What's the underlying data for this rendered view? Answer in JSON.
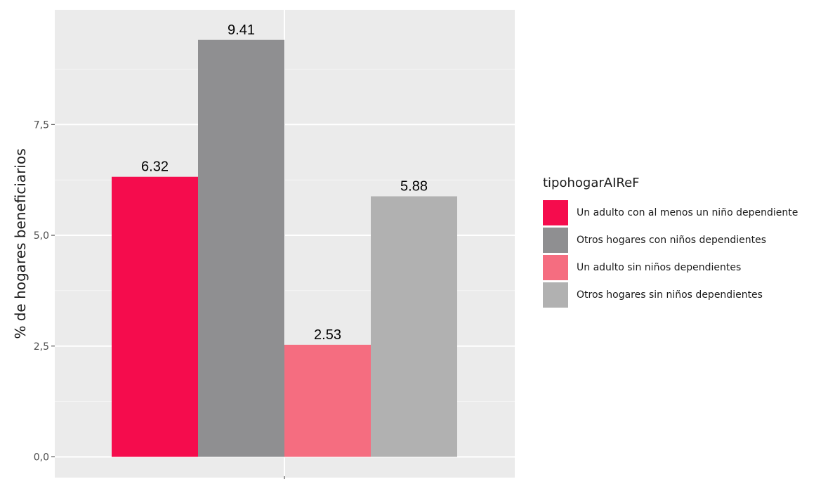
{
  "chart_data": {
    "type": "bar",
    "categories": [
      ""
    ],
    "series": [
      {
        "name": "Un adulto con al menos un niño dependiente",
        "values": [
          6.32
        ],
        "color": "#f50c4d",
        "label": "6.32"
      },
      {
        "name": "Otros hogares con niños dependientes",
        "values": [
          9.41
        ],
        "color": "#8f8f91",
        "label": "9.41"
      },
      {
        "name": "Un adulto sin niños dependientes",
        "values": [
          2.53
        ],
        "color": "#f56d80",
        "label": "2.53"
      },
      {
        "name": "Otros hogares sin niños dependientes",
        "values": [
          5.88
        ],
        "color": "#b1b1b1",
        "label": "5.88"
      }
    ],
    "xlabel": "",
    "ylabel": "% de hogares beneficiarios",
    "ylim": [
      0,
      9.85
    ],
    "yticks": [
      0,
      2.5,
      5,
      7.5
    ],
    "ytick_labels": [
      "0,0",
      "2,5",
      "5,0",
      "7,5"
    ],
    "legend_title": "tipohogarAIReF",
    "legend_position": "right",
    "grid": true,
    "panel_color": "#ebebeb"
  }
}
